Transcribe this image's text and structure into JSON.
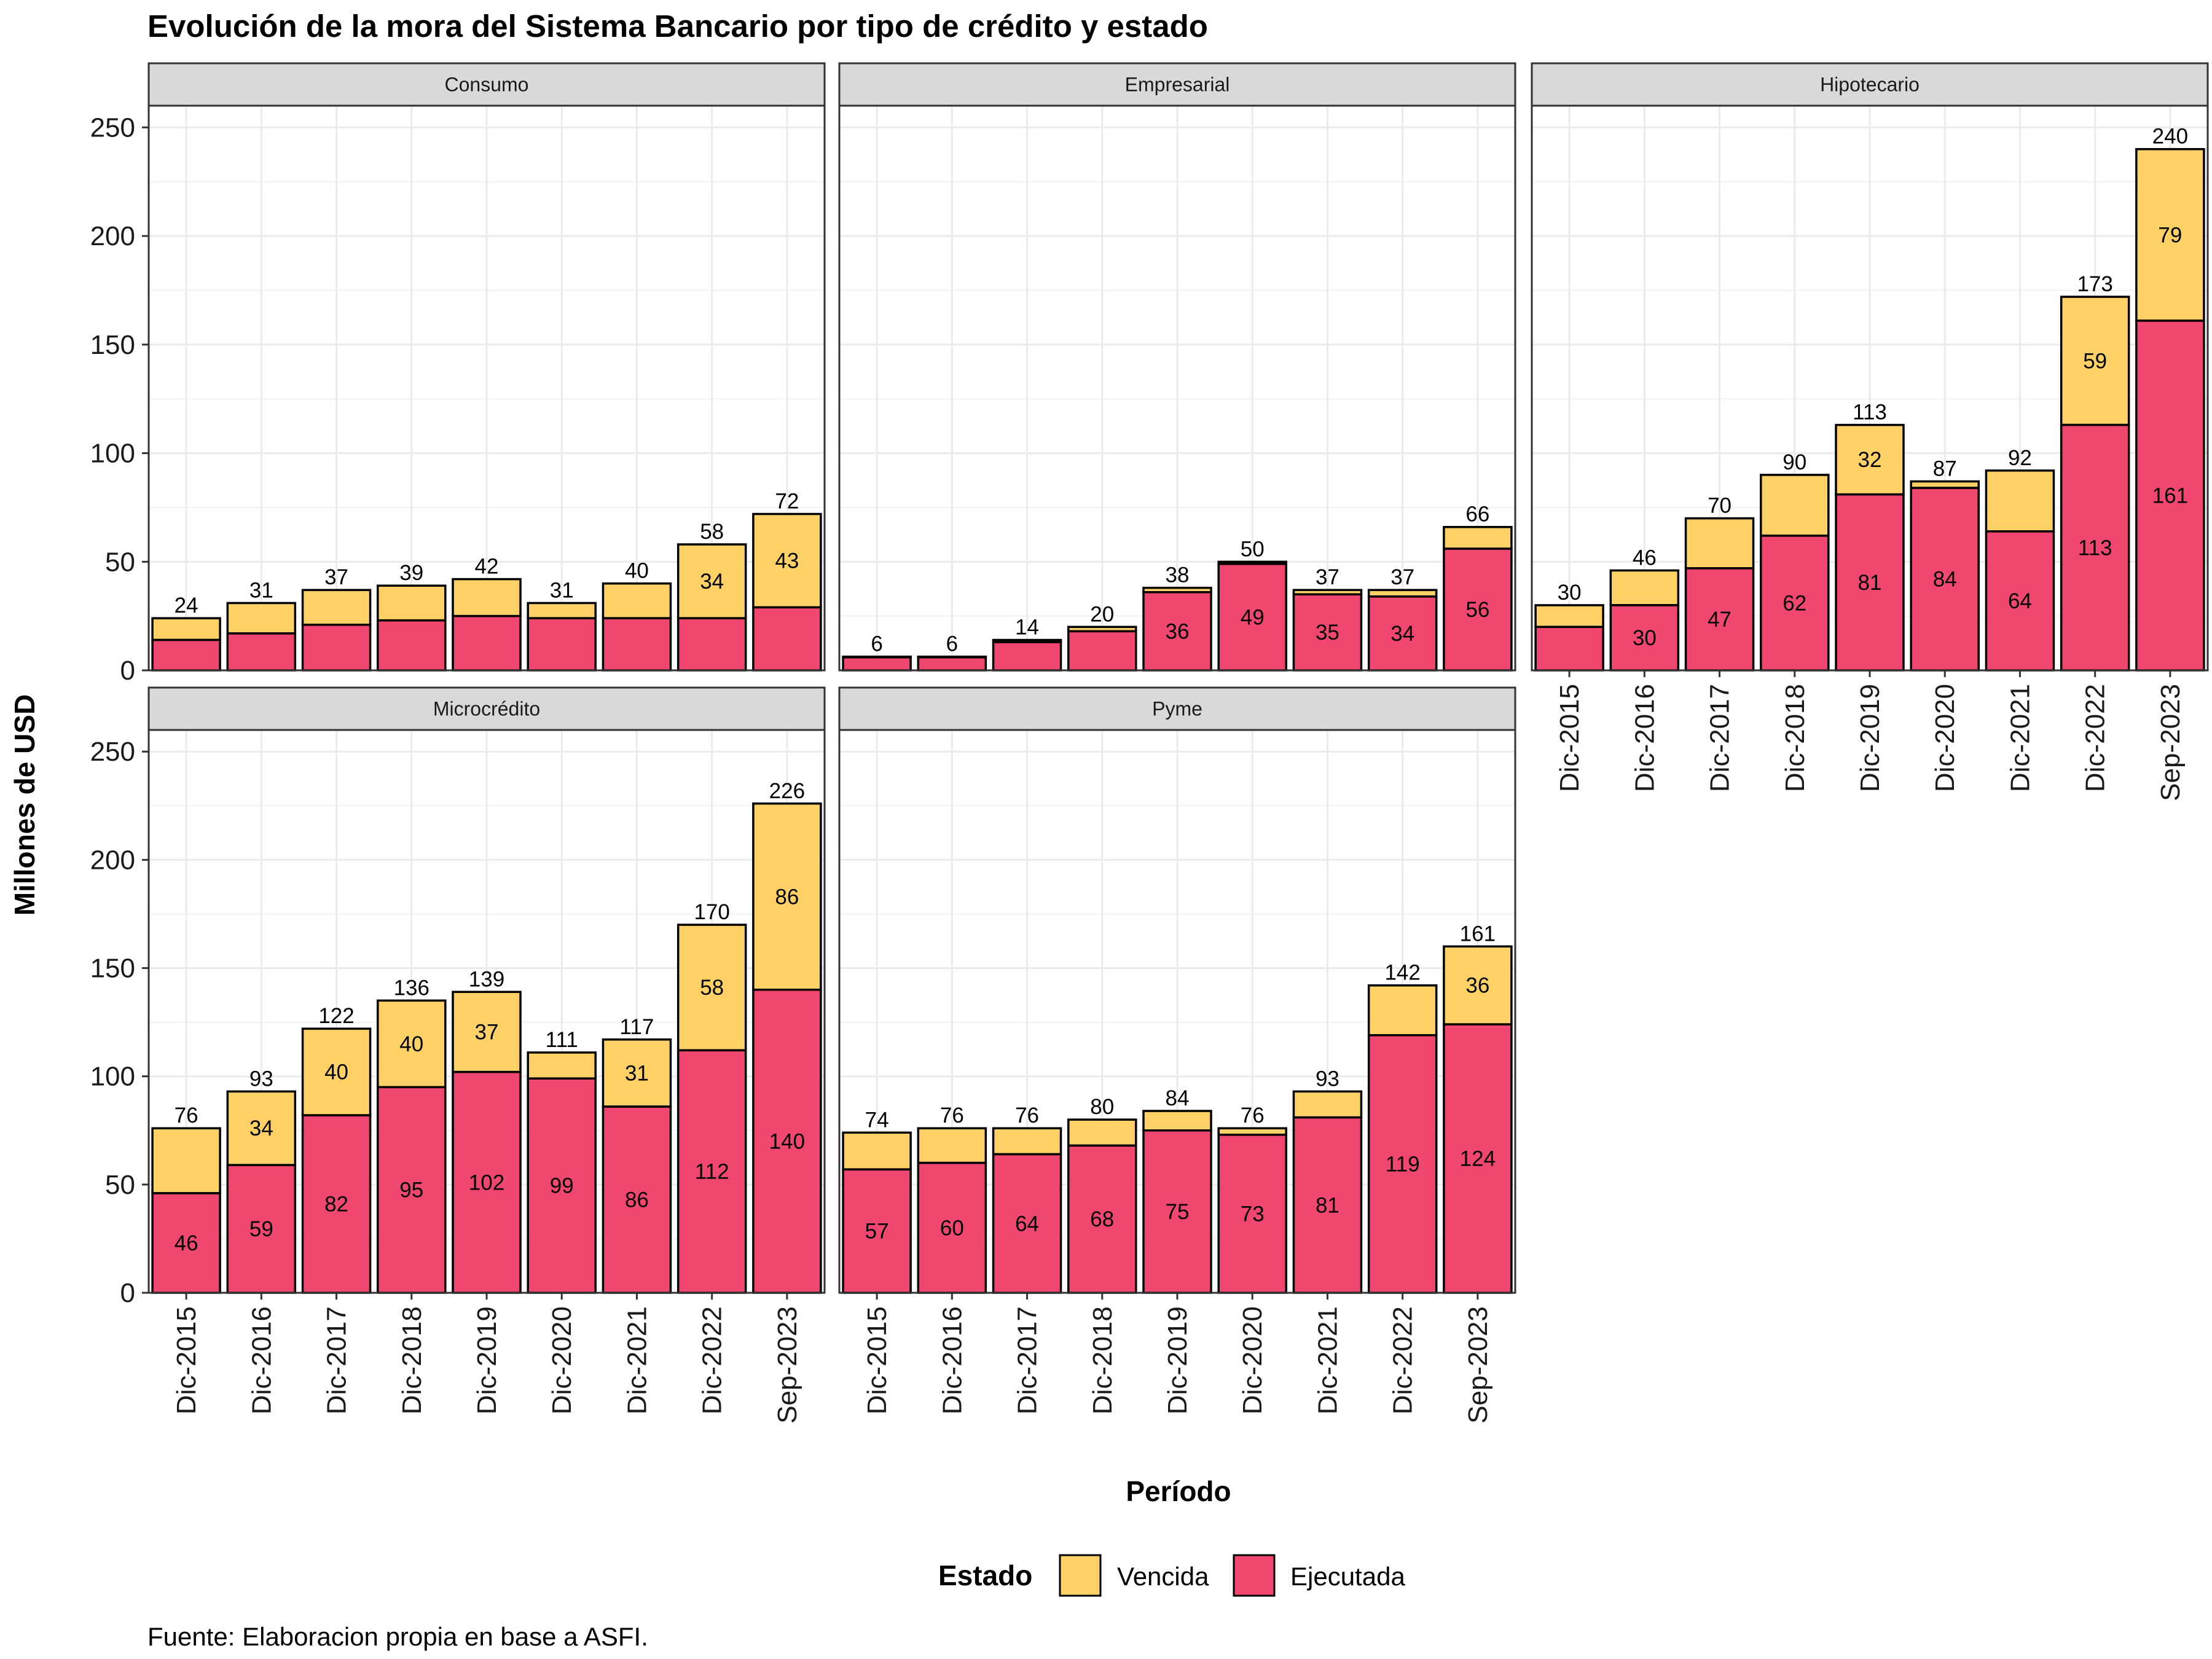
{
  "chart_data": {
    "type": "bar",
    "stacked": true,
    "title": "Evolución de la mora del Sistema Bancario por tipo de crédito y estado",
    "xlabel": "Período",
    "ylabel": "Millones de USD",
    "ylim": [
      0,
      260
    ],
    "y_ticks": [
      0,
      50,
      100,
      150,
      200,
      250
    ],
    "grid": true,
    "categories": [
      "Dic-2015",
      "Dic-2016",
      "Dic-2017",
      "Dic-2018",
      "Dic-2019",
      "Dic-2020",
      "Dic-2021",
      "Dic-2022",
      "Sep-2023"
    ],
    "legend": {
      "title": "Estado",
      "position": "bottom",
      "items": [
        {
          "label": "Vencida",
          "color": "#FDD166"
        },
        {
          "label": "Ejecutada",
          "color": "#EF476F"
        }
      ]
    },
    "caption": "Fuente: Elaboracion propia en base a ASFI.",
    "panels": [
      {
        "name": "Consumo",
        "ejecutada": [
          14,
          17,
          21,
          23,
          25,
          24,
          24,
          24,
          29
        ],
        "vencida": [
          10,
          14,
          16,
          16,
          17,
          7,
          16,
          34,
          43
        ],
        "totals": [
          24,
          31,
          37,
          39,
          42,
          31,
          40,
          58,
          72
        ],
        "ejecutada_labels": [
          null,
          null,
          null,
          null,
          null,
          null,
          null,
          null,
          null
        ],
        "vencida_labels": [
          null,
          null,
          null,
          null,
          null,
          null,
          null,
          "34",
          "43"
        ],
        "total_labels": [
          "24",
          "31",
          "37",
          "39",
          "42",
          "31",
          "40",
          "58",
          "72"
        ]
      },
      {
        "name": "Empresarial",
        "ejecutada": [
          6,
          6,
          13,
          18,
          36,
          49,
          35,
          34,
          56
        ],
        "vencida": [
          0.3,
          0.3,
          1,
          2,
          2,
          1,
          2,
          3,
          10
        ],
        "totals": [
          6,
          6,
          14,
          20,
          38,
          50,
          37,
          37,
          66
        ],
        "ejecutada_labels": [
          null,
          null,
          null,
          null,
          "36",
          "49",
          "35",
          "34",
          "56"
        ],
        "vencida_labels": [
          null,
          null,
          null,
          null,
          null,
          null,
          null,
          null,
          null
        ],
        "total_labels": [
          "6",
          "6",
          "14",
          "20",
          "38",
          "50",
          "37",
          "37",
          "66"
        ]
      },
      {
        "name": "Hipotecario",
        "ejecutada": [
          20,
          30,
          47,
          62,
          81,
          84,
          64,
          113,
          161
        ],
        "vencida": [
          10,
          16,
          23,
          28,
          32,
          3,
          28,
          59,
          79
        ],
        "totals": [
          30,
          46,
          70,
          90,
          113,
          87,
          92,
          173,
          240
        ],
        "ejecutada_labels": [
          null,
          "30",
          "47",
          "62",
          "81",
          "84",
          "64",
          "113",
          "161"
        ],
        "vencida_labels": [
          null,
          null,
          null,
          null,
          "32",
          null,
          null,
          "59",
          "79"
        ],
        "total_labels": [
          "30",
          "46",
          "70",
          "90",
          "113",
          "87",
          "92",
          "173",
          "240"
        ]
      },
      {
        "name": "Microcrédito",
        "ejecutada": [
          46,
          59,
          82,
          95,
          102,
          99,
          86,
          112,
          140
        ],
        "vencida": [
          30,
          34,
          40,
          40,
          37,
          12,
          31,
          58,
          86
        ],
        "totals": [
          76,
          93,
          122,
          136,
          139,
          111,
          117,
          170,
          226
        ],
        "ejecutada_labels": [
          "46",
          "59",
          "82",
          "95",
          "102",
          "99",
          "86",
          "112",
          "140"
        ],
        "vencida_labels": [
          null,
          "34",
          "40",
          "40",
          "37",
          null,
          "31",
          "58",
          "86"
        ],
        "total_labels": [
          "76",
          "93",
          "122",
          "136",
          "139",
          "111",
          "117",
          "170",
          "226"
        ]
      },
      {
        "name": "Pyme",
        "ejecutada": [
          57,
          60,
          64,
          68,
          75,
          73,
          81,
          119,
          124
        ],
        "vencida": [
          17,
          16,
          12,
          12,
          9,
          3,
          12,
          23,
          36
        ],
        "totals": [
          74,
          76,
          76,
          80,
          84,
          76,
          93,
          142,
          161
        ],
        "ejecutada_labels": [
          "57",
          "60",
          "64",
          "68",
          "75",
          "73",
          "81",
          "119",
          "124"
        ],
        "vencida_labels": [
          null,
          null,
          null,
          null,
          null,
          null,
          null,
          null,
          "36"
        ],
        "total_labels": [
          "74",
          "76",
          "76",
          "80",
          "84",
          "76",
          "93",
          "142",
          "161"
        ]
      }
    ]
  }
}
